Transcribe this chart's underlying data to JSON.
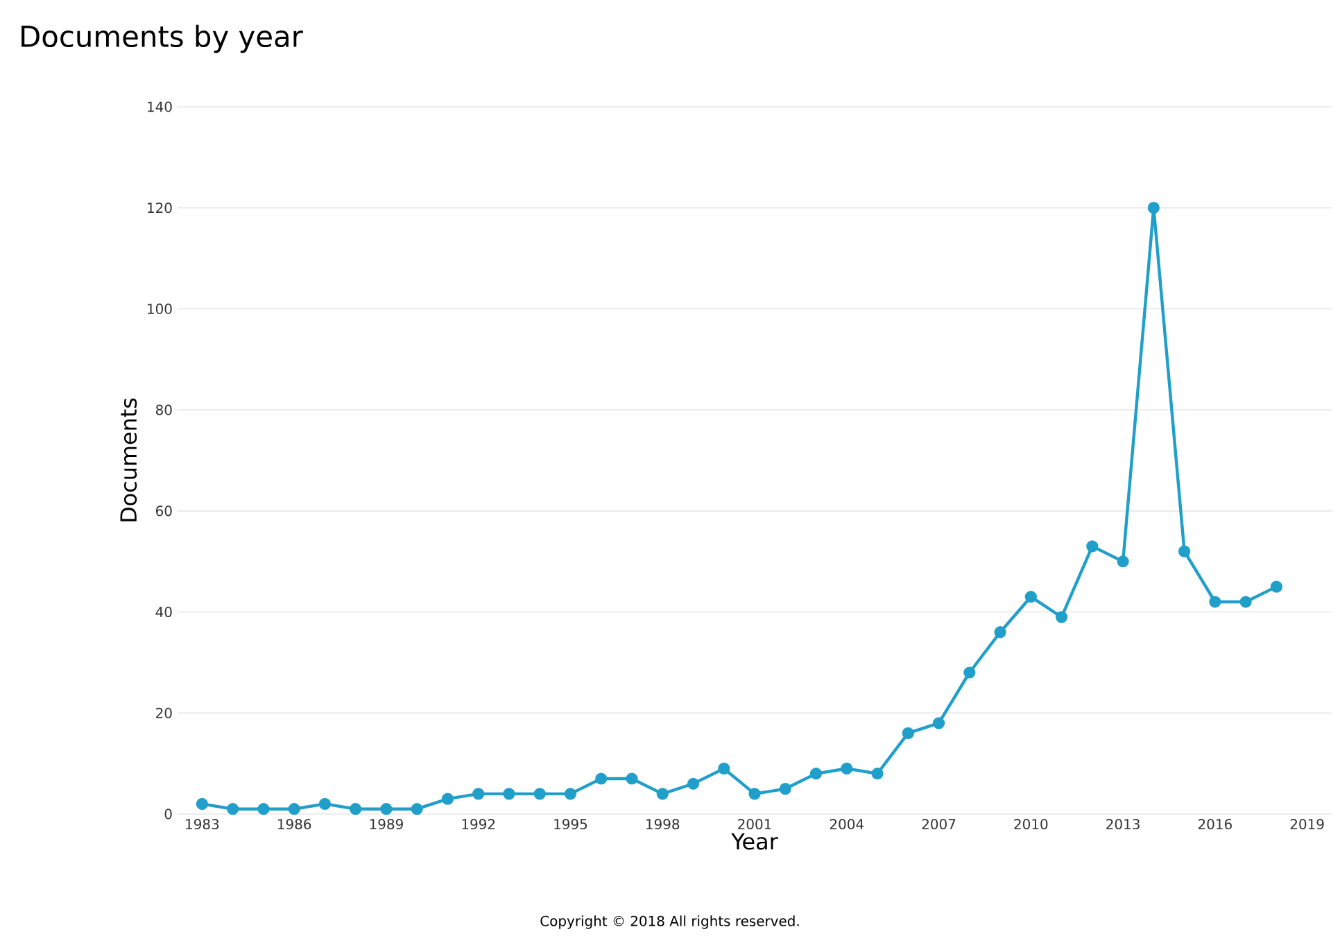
{
  "chart_data": {
    "type": "line",
    "title": "Documents by year",
    "xlabel": "Year",
    "ylabel": "Documents",
    "annotations": [
      "Copyright © 2018 All rights reserved."
    ],
    "x": [
      1983,
      1984,
      1985,
      1986,
      1987,
      1988,
      1989,
      1990,
      1991,
      1992,
      1993,
      1994,
      1995,
      1996,
      1997,
      1998,
      1999,
      2000,
      2001,
      2002,
      2003,
      2004,
      2005,
      2006,
      2007,
      2008,
      2009,
      2010,
      2011,
      2012,
      2013,
      2014,
      2015,
      2016,
      2017,
      2018
    ],
    "series": [
      {
        "color": "#1f9fc9",
        "values": [
          2,
          1,
          1,
          1,
          2,
          1,
          1,
          1,
          3,
          4,
          4,
          4,
          4,
          7,
          7,
          4,
          6,
          9,
          4,
          5,
          8,
          9,
          8,
          16,
          18,
          28,
          36,
          43,
          39,
          53,
          50,
          120,
          52,
          42,
          42,
          45
        ]
      }
    ],
    "xlim": [
      1982.2,
      2019.8
    ],
    "ylim": [
      0,
      140
    ],
    "xticks": [
      1983,
      1986,
      1989,
      1992,
      1995,
      1998,
      2001,
      2004,
      2007,
      2010,
      2013,
      2016,
      2019
    ],
    "yticks": [
      0,
      20,
      40,
      60,
      80,
      100,
      120,
      140
    ],
    "grid": "y",
    "marker": "circle",
    "line_style": "solid"
  }
}
